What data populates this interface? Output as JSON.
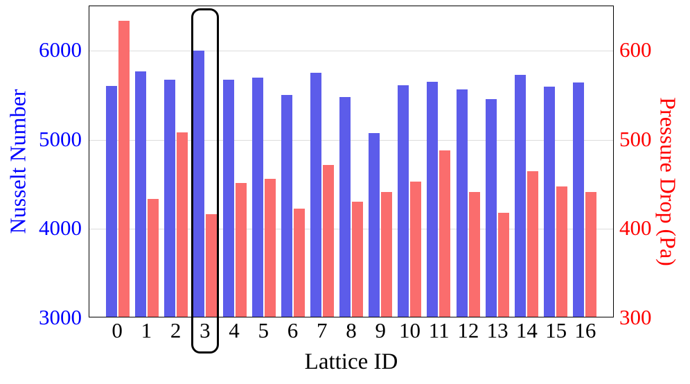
{
  "chart_data": {
    "type": "bar",
    "title": "",
    "xlabel": "Lattice ID",
    "ylabel_left": "Nusselt Number",
    "ylabel_right": "Pressure Drop (Pa)",
    "categories": [
      "0",
      "1",
      "2",
      "3",
      "4",
      "5",
      "6",
      "7",
      "8",
      "9",
      "10",
      "11",
      "12",
      "13",
      "14",
      "15",
      "16"
    ],
    "series": [
      {
        "name": "Nusselt Number",
        "axis": "left",
        "color": "#5c5cea",
        "values": [
          5590,
          5750,
          5660,
          5985,
          5660,
          5680,
          5490,
          5740,
          5465,
          5060,
          5600,
          5635,
          5550,
          5440,
          5715,
          5585,
          5630
        ]
      },
      {
        "name": "Pressure Drop (Pa)",
        "axis": "right",
        "color": "#fa6d6d",
        "values": [
          632,
          432,
          507,
          415,
          450,
          455,
          421,
          470,
          429,
          440,
          452,
          487,
          440,
          417,
          463,
          446,
          440
        ]
      }
    ],
    "left_axis": {
      "label": "Nusselt Number",
      "color": "#0000ff",
      "ticks": [
        "3000",
        "4000",
        "5000",
        "6000"
      ],
      "tick_values": [
        3000,
        4000,
        5000,
        6000
      ],
      "range": [
        3000,
        6500
      ]
    },
    "right_axis": {
      "label": "Pressure Drop (Pa)",
      "color": "#ff0000",
      "ticks": [
        "300",
        "400",
        "500",
        "600"
      ],
      "tick_values": [
        300,
        400,
        500,
        600
      ],
      "range": [
        300,
        650
      ]
    },
    "grid": true,
    "legend": "none",
    "highlight": {
      "category": "3",
      "style": "black rounded outline around the bars and tick label of Lattice ID 3"
    }
  }
}
